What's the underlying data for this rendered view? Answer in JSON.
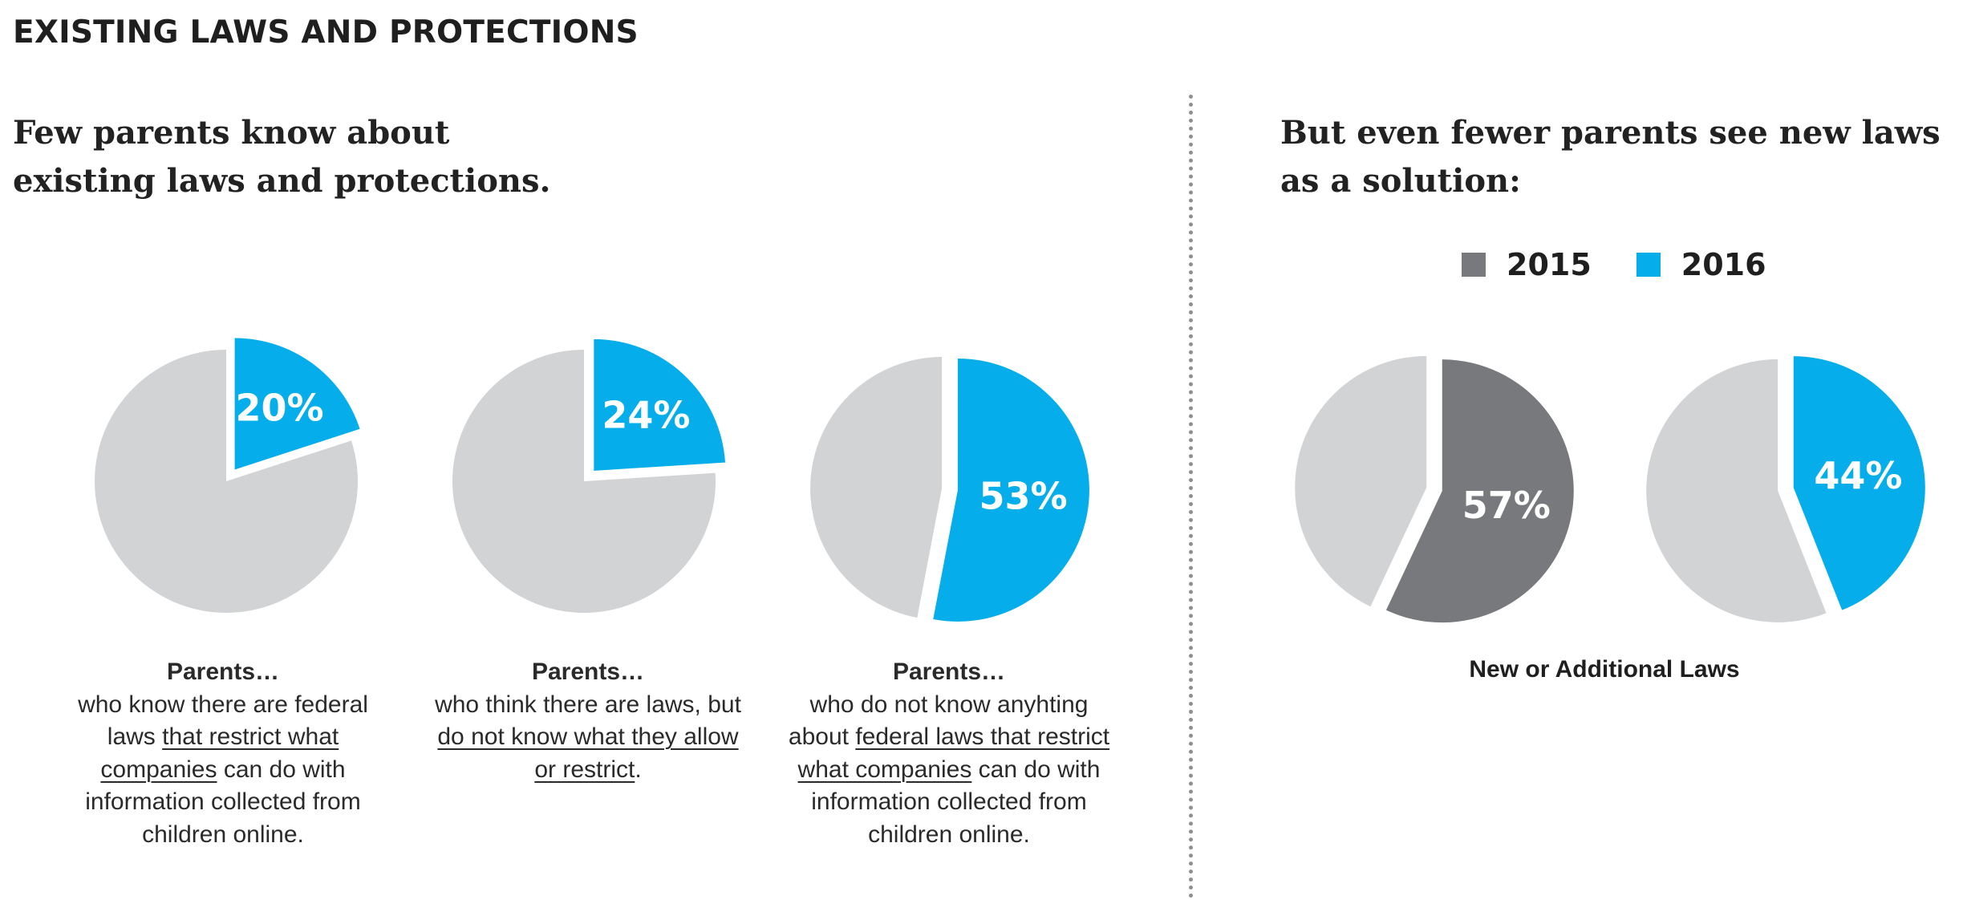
{
  "heading": "EXISTING LAWS AND PROTECTIONS",
  "left_subhead": "Few parents know about existing laws and protections.",
  "right_subhead": "But even fewer parents see new laws as a solution:",
  "colors": {
    "highlight": "#05aeea",
    "rest": "#d2d3d5",
    "dark": "#78797c"
  },
  "captions": [
    {
      "title": "Parents…",
      "pre": "who know there are federal laws ",
      "link": "that restrict what companies",
      "post": " can do with information collected from children online."
    },
    {
      "title": "Parents…",
      "pre": "who think there are laws, but ",
      "link": "do not know what they allow or restrict",
      "post": "."
    },
    {
      "title": "Parents…",
      "pre": "who do not know anyhting about ",
      "link": "federal laws that restrict what companies",
      "post": " can do with information collected from children online."
    }
  ],
  "legend": [
    {
      "label": "2015",
      "color": "#78797c"
    },
    {
      "label": "2016",
      "color": "#05aeea"
    }
  ],
  "right_caption": "New or Additional Laws",
  "chart_data": [
    {
      "type": "pie",
      "labels": [
        "Parents…",
        ""
      ],
      "values": [
        20,
        80
      ],
      "value_label": "20%"
    },
    {
      "type": "pie",
      "labels": [
        "Parents…",
        ""
      ],
      "values": [
        24,
        76
      ],
      "value_label": "24%"
    },
    {
      "type": "pie",
      "labels": [
        "Parents…",
        ""
      ],
      "values": [
        53,
        47
      ],
      "value_label": "53%"
    },
    {
      "type": "pie",
      "labels": [
        "2015",
        ""
      ],
      "values": [
        57,
        43
      ],
      "value_label": "57%",
      "xlabel": "New or Additional Laws"
    },
    {
      "type": "pie",
      "labels": [
        "2016",
        ""
      ],
      "values": [
        44,
        56
      ],
      "value_label": "44%",
      "xlabel": "New or Additional Laws"
    }
  ]
}
